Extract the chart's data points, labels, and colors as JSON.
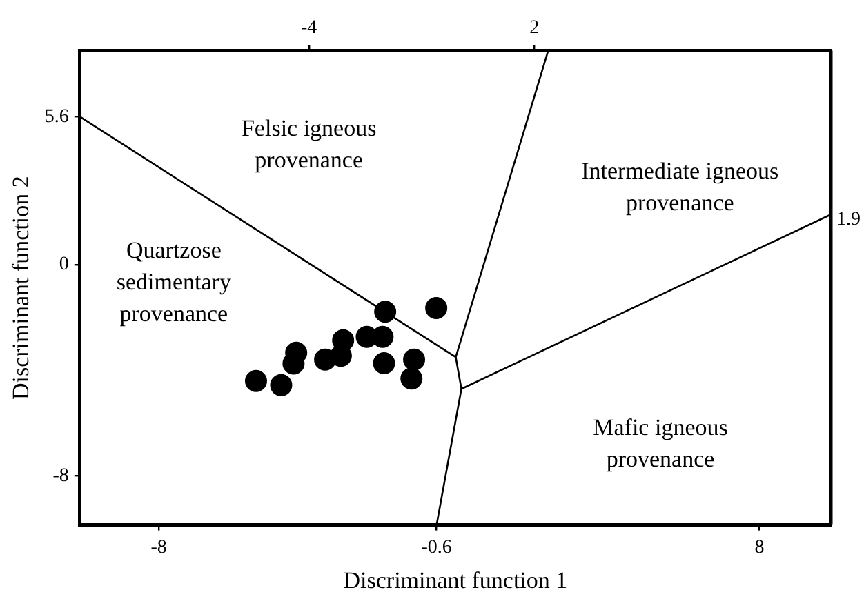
{
  "chart_data": {
    "type": "scatter",
    "xlabel": "Discriminant function 1",
    "ylabel": "Discriminant function 2",
    "xlim": [
      -10.1,
      9.9
    ],
    "xticks": [
      -8,
      -0.6,
      8
    ],
    "x2lim": [
      -10.1,
      9.9
    ],
    "x2ticks": [
      -4,
      2
    ],
    "ylim": [
      -9.85,
      8.1
    ],
    "yticks": [
      5.6,
      0,
      -8
    ],
    "grid": false,
    "legend": false,
    "series": [
      {
        "type": "scatter",
        "color": "#000000",
        "marker": "circle",
        "x": [
          -5.41,
          -4.74,
          -4.34,
          -4.41,
          -3.57,
          -3.15,
          -3.09,
          -2.46,
          -2.04,
          -1.97,
          -0.61,
          -2.0,
          -1.2,
          -1.27
        ],
        "values": [
          -4.4,
          -4.56,
          -3.33,
          -3.74,
          -3.59,
          -3.45,
          -2.86,
          -2.73,
          -2.73,
          -1.78,
          -1.64,
          -3.73,
          -3.59,
          -4.31
        ]
      },
      {
        "type": "line",
        "color": "#000000",
        "marker": "none",
        "line_style": "solid",
        "x": [
          -10.1,
          -0.09,
          2.37
        ],
        "values": [
          5.6,
          -3.5,
          8.1
        ]
      },
      {
        "type": "line",
        "color": "#000000",
        "marker": "none",
        "line_style": "solid",
        "x": [
          -0.09,
          0.06,
          9.9
        ],
        "values": [
          -3.5,
          -4.7,
          1.9
        ]
      },
      {
        "type": "line",
        "color": "#000000",
        "marker": "none",
        "line_style": "solid",
        "x": [
          0.06,
          -0.6
        ],
        "values": [
          -4.7,
          -9.85
        ]
      }
    ],
    "annotations": [
      "Felsic igneous\nprovenance",
      "Intermediate igneous\nprovenance",
      "Quartzose\nsedimentary\nprovenance",
      "Mafic igneous\nprovenance",
      "1.9"
    ]
  }
}
